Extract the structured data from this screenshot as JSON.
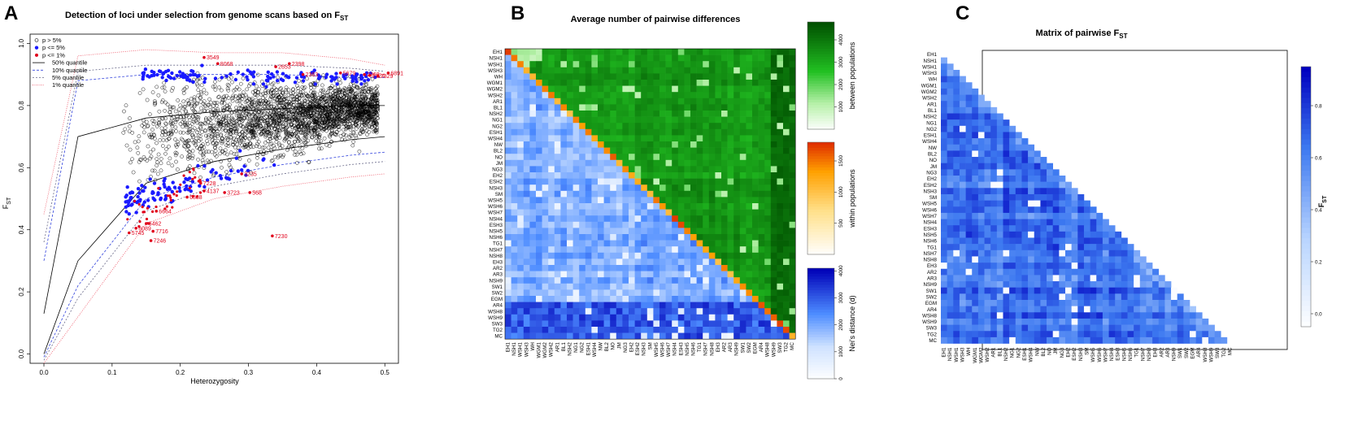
{
  "panels": {
    "a": {
      "letter": "A",
      "title": "Detection of loci under selection from genome scans based on F",
      "title_sub": "ST",
      "xlabel": "Heterozygosity",
      "ylabel": "F",
      "ylabel_sub": "ST"
    },
    "b": {
      "letter": "B",
      "title": "Average number of pairwise differences",
      "legend_labels": [
        "between populations",
        "within populations",
        "Nei's distance (d)"
      ]
    },
    "c": {
      "letter": "C",
      "title": "Matrix of pairwise F",
      "title_sub": "ST",
      "legend_label": "F",
      "legend_label_sub": "ST"
    }
  },
  "colors": {
    "outlier95": "#1a1aff",
    "outlier99": "#e0001b",
    "neutral": "#000000",
    "green_dark": "#006400",
    "green_mid": "#00c000",
    "blue_dark": "#0000c8",
    "blue_mid": "#3b7bff",
    "orange": "#ff6a00"
  },
  "populations": [
    "EH1",
    "NSH1",
    "WSH1",
    "WSH3",
    "WH",
    "WGM1",
    "WGM2",
    "WSH2",
    "AR1",
    "BL1",
    "NSH2",
    "NG1",
    "NG2",
    "ESH1",
    "WSH4",
    "NW",
    "BL2",
    "NO",
    "JM",
    "NG3",
    "EH2",
    "ESH2",
    "NSH3",
    "SM",
    "WSH5",
    "WSH6",
    "WSH7",
    "NSH4",
    "ESH3",
    "NSH5",
    "NSH6",
    "TG1",
    "NSH7",
    "NSH8",
    "EH3",
    "AR2",
    "AR3",
    "NSH9",
    "SW1",
    "SW2",
    "EGM",
    "AR4",
    "WSH8",
    "WSH9",
    "SW3",
    "TG2",
    "MC"
  ],
  "chart_data": [
    {
      "type": "scatter",
      "title": "Detection of loci under selection from genome scans based on FST",
      "xlabel": "Heterozygosity",
      "ylabel": "FST",
      "xlim": [
        0.0,
        0.52
      ],
      "ylim": [
        -0.03,
        1.03
      ],
      "xticks": [
        "0.0",
        "0.1",
        "0.2",
        "0.3",
        "0.4",
        "0.5"
      ],
      "yticks": [
        "0.0",
        "0.2",
        "0.4",
        "0.6",
        "0.8",
        "1.0"
      ],
      "legend": [
        "p > 5%",
        "p <= 5%",
        "p <= 1%",
        "50% quantile",
        "10% quantile",
        "5% quantile",
        "1% quantile"
      ],
      "legend_position": "top-left",
      "quantiles": {
        "x": [
          0.0,
          0.05,
          0.15,
          0.25,
          0.35,
          0.45,
          0.5
        ],
        "q50_upper": [
          0.13,
          0.7,
          0.76,
          0.78,
          0.79,
          0.8,
          0.8
        ],
        "q50_lower": [
          0.0,
          0.3,
          0.55,
          0.62,
          0.66,
          0.69,
          0.7
        ],
        "q10_upper": [
          0.3,
          0.88,
          0.9,
          0.9,
          0.9,
          0.89,
          0.89
        ],
        "q10_lower": [
          -0.01,
          0.22,
          0.5,
          0.57,
          0.61,
          0.64,
          0.65
        ],
        "q5_upper": [
          0.36,
          0.91,
          0.93,
          0.93,
          0.93,
          0.92,
          0.91
        ],
        "q5_lower": [
          -0.02,
          0.18,
          0.46,
          0.54,
          0.58,
          0.61,
          0.62
        ],
        "q1_upper": [
          0.45,
          0.96,
          0.98,
          0.97,
          0.97,
          0.95,
          0.93
        ],
        "q1_lower": [
          -0.03,
          0.12,
          0.42,
          0.5,
          0.54,
          0.57,
          0.58
        ]
      },
      "annotations": [
        {
          "label": "3549",
          "x": 0.235,
          "y": 0.955
        },
        {
          "label": "8068",
          "x": 0.255,
          "y": 0.935
        },
        {
          "label": "2653",
          "x": 0.34,
          "y": 0.925
        },
        {
          "label": "2398",
          "x": 0.36,
          "y": 0.935
        },
        {
          "label": "2363",
          "x": 0.38,
          "y": 0.9
        },
        {
          "label": "5679",
          "x": 0.435,
          "y": 0.905
        },
        {
          "label": "2363",
          "x": 0.47,
          "y": 0.9
        },
        {
          "label": "2124",
          "x": 0.478,
          "y": 0.897
        },
        {
          "label": "7329",
          "x": 0.49,
          "y": 0.895
        },
        {
          "label": "6891",
          "x": 0.505,
          "y": 0.905
        },
        {
          "label": "3235",
          "x": 0.29,
          "y": 0.58
        },
        {
          "label": "568",
          "x": 0.302,
          "y": 0.52
        },
        {
          "label": "3723",
          "x": 0.265,
          "y": 0.52
        },
        {
          "label": "4137",
          "x": 0.235,
          "y": 0.525
        },
        {
          "label": "7228",
          "x": 0.23,
          "y": 0.55
        },
        {
          "label": "6888",
          "x": 0.21,
          "y": 0.505
        },
        {
          "label": "6664",
          "x": 0.165,
          "y": 0.46
        },
        {
          "label": "7716",
          "x": 0.16,
          "y": 0.395
        },
        {
          "label": "7246",
          "x": 0.157,
          "y": 0.365
        },
        {
          "label": "7230",
          "x": 0.335,
          "y": 0.38
        },
        {
          "label": "5745",
          "x": 0.125,
          "y": 0.39
        },
        {
          "label": "6089",
          "x": 0.135,
          "y": 0.405
        },
        {
          "label": "6462",
          "x": 0.15,
          "y": 0.42
        }
      ]
    },
    {
      "type": "heatmap",
      "title": "Average number of pairwise differences",
      "colorbars": [
        {
          "label": "between populations",
          "ticks": [
            "1000",
            "2000",
            "3000",
            "4000"
          ],
          "range": [
            0,
            4800
          ]
        },
        {
          "label": "within populations",
          "ticks": [
            "500",
            "1000",
            "1500"
          ],
          "range": [
            0,
            1800
          ]
        },
        {
          "label": "Nei's distance (d)",
          "ticks": [
            "0",
            "1000",
            "2000",
            "3000",
            "4000"
          ],
          "range": [
            0,
            4100
          ]
        }
      ]
    },
    {
      "type": "heatmap",
      "title": "Matrix of pairwise FST",
      "colorbar": {
        "label": "FST",
        "ticks": [
          "0.0",
          "0.2",
          "0.4",
          "0.6",
          "0.8"
        ],
        "range": [
          -0.05,
          0.95
        ]
      }
    }
  ]
}
